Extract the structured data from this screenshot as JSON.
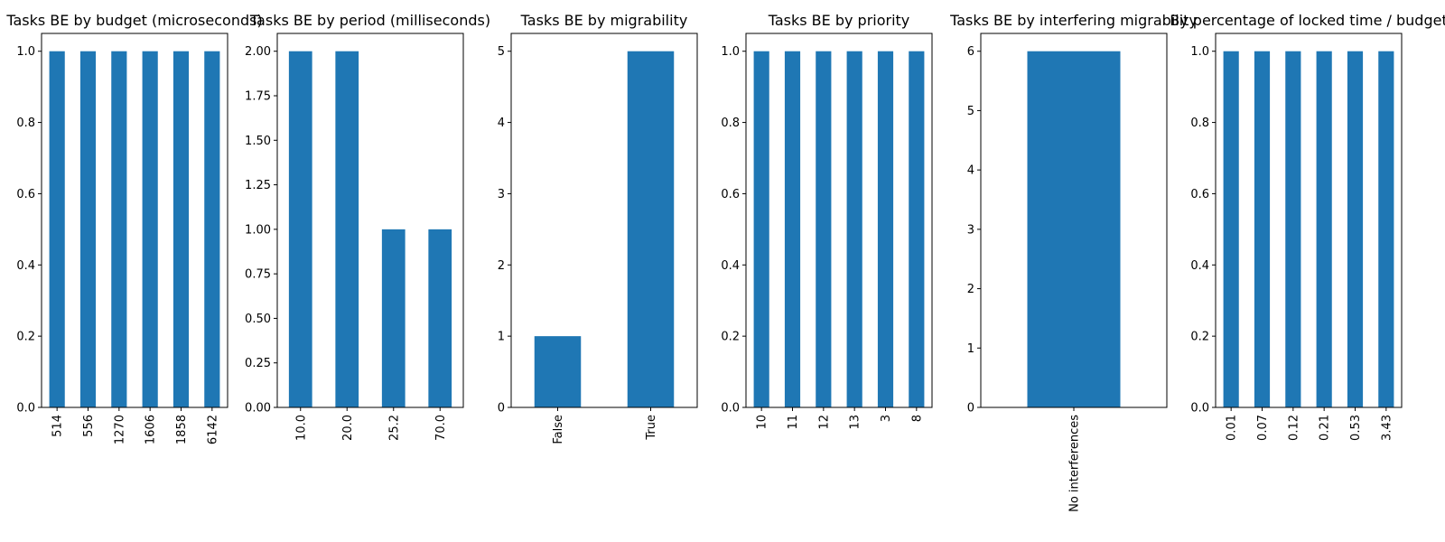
{
  "chart_data": [
    {
      "type": "bar",
      "title": "Tasks BE by budget (microseconds)",
      "categories": [
        "514",
        "556",
        "1270",
        "1606",
        "1858",
        "6142"
      ],
      "values": [
        1,
        1,
        1,
        1,
        1,
        1
      ],
      "ylim": [
        0,
        1.05
      ],
      "yticks": [
        "0.0",
        "0.2",
        "0.4",
        "0.6",
        "0.8",
        "1.0"
      ],
      "ytick_values": [
        0,
        0.2,
        0.4,
        0.6,
        0.8,
        1.0
      ],
      "color": "#1f77b4"
    },
    {
      "type": "bar",
      "title": "Tasks BE by period (milliseconds)",
      "categories": [
        "10.0",
        "20.0",
        "25.2",
        "70.0"
      ],
      "values": [
        2,
        2,
        1,
        1
      ],
      "ylim": [
        0,
        2.1
      ],
      "yticks": [
        "0.00",
        "0.25",
        "0.50",
        "0.75",
        "1.00",
        "1.25",
        "1.50",
        "1.75",
        "2.00"
      ],
      "ytick_values": [
        0,
        0.25,
        0.5,
        0.75,
        1.0,
        1.25,
        1.5,
        1.75,
        2.0
      ],
      "color": "#1f77b4"
    },
    {
      "type": "bar",
      "title": "Tasks BE by migrability",
      "categories": [
        "False",
        "True"
      ],
      "values": [
        1,
        5
      ],
      "ylim": [
        0,
        5.25
      ],
      "yticks": [
        "0",
        "1",
        "2",
        "3",
        "4",
        "5"
      ],
      "ytick_values": [
        0,
        1,
        2,
        3,
        4,
        5
      ],
      "color": "#1f77b4"
    },
    {
      "type": "bar",
      "title": "Tasks BE by priority",
      "categories": [
        "10",
        "11",
        "12",
        "13",
        "3",
        "8"
      ],
      "values": [
        1,
        1,
        1,
        1,
        1,
        1
      ],
      "ylim": [
        0,
        1.05
      ],
      "yticks": [
        "0.0",
        "0.2",
        "0.4",
        "0.6",
        "0.8",
        "1.0"
      ],
      "ytick_values": [
        0,
        0.2,
        0.4,
        0.6,
        0.8,
        1.0
      ],
      "color": "#1f77b4"
    },
    {
      "type": "bar",
      "title": "Tasks BE by interfering migrability",
      "categories": [
        "No interferences"
      ],
      "values": [
        6
      ],
      "ylim": [
        0,
        6.3
      ],
      "yticks": [
        "0",
        "1",
        "2",
        "3",
        "4",
        "5",
        "6"
      ],
      "ytick_values": [
        0,
        1,
        2,
        3,
        4,
        5,
        6
      ],
      "color": "#1f77b4"
    },
    {
      "type": "bar",
      "title": "By percentage of locked time / budget",
      "categories": [
        "0.01",
        "0.07",
        "0.12",
        "0.21",
        "0.53",
        "3.43"
      ],
      "values": [
        1,
        1,
        1,
        1,
        1,
        1
      ],
      "ylim": [
        0,
        1.05
      ],
      "yticks": [
        "0.0",
        "0.2",
        "0.4",
        "0.6",
        "0.8",
        "1.0"
      ],
      "ytick_values": [
        0,
        0.2,
        0.4,
        0.6,
        0.8,
        1.0
      ],
      "color": "#1f77b4"
    }
  ]
}
